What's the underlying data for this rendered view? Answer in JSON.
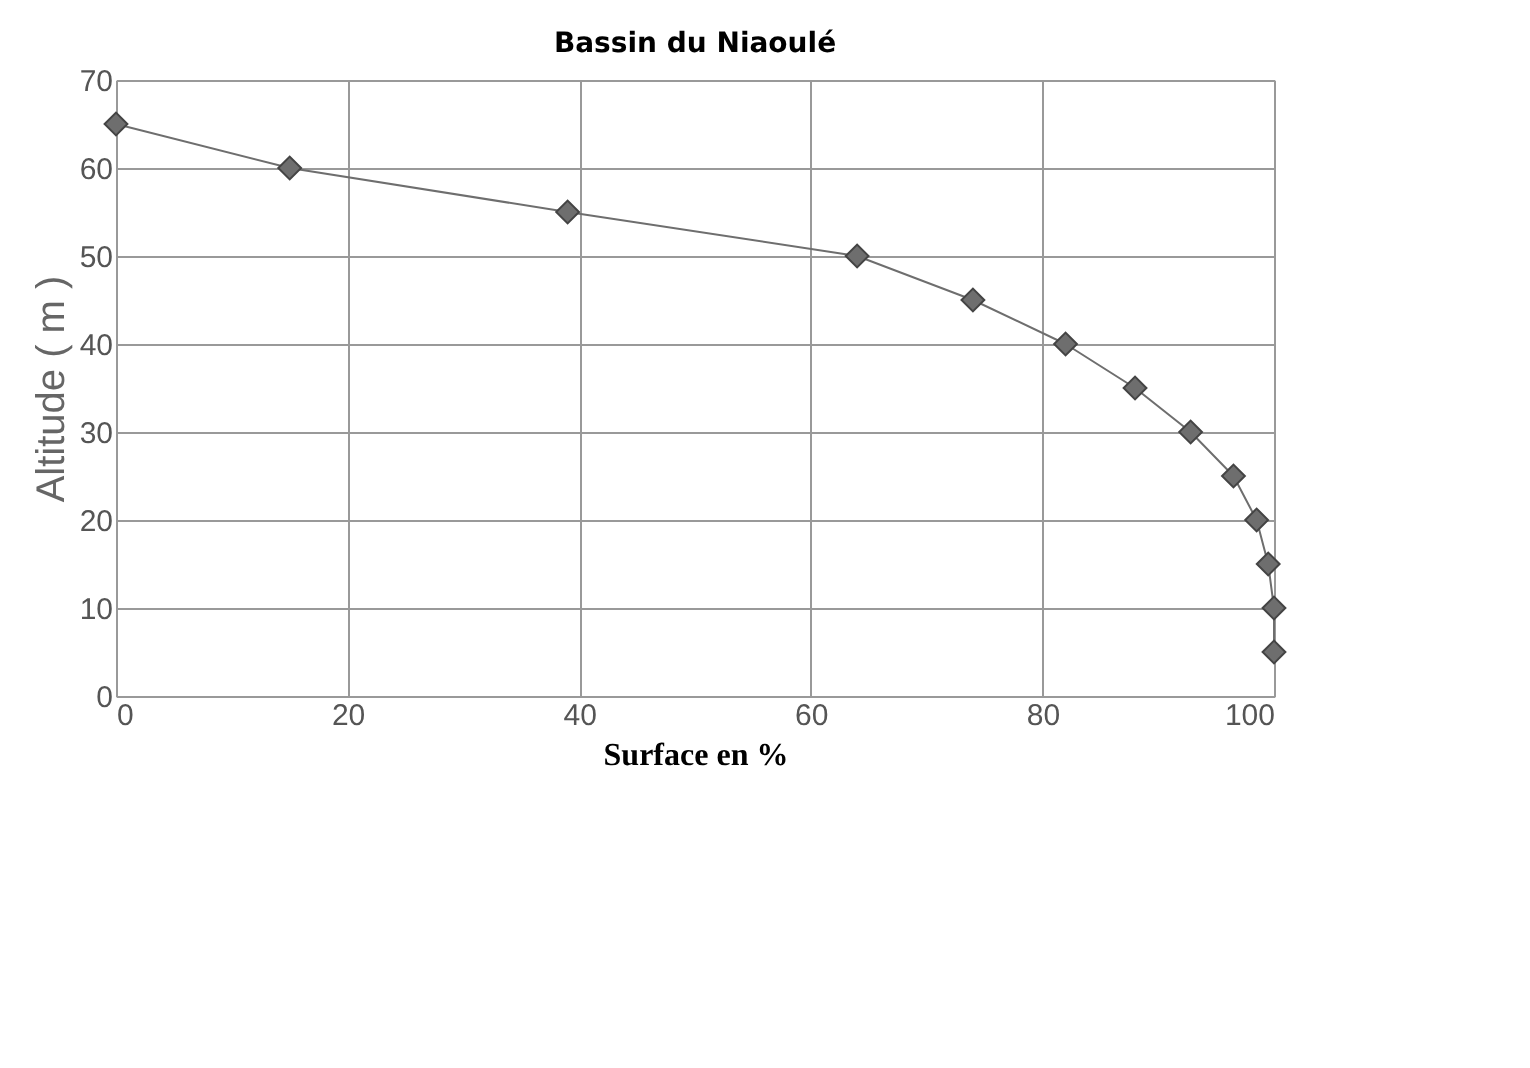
{
  "chart_data": {
    "type": "line",
    "title": "Bassin du Niaoulé",
    "xlabel": "Surface en %",
    "ylabel": "Altitude ( m )",
    "series": [
      {
        "color": "#6e6e6e",
        "x": [
          0,
          15,
          39,
          64,
          74,
          82,
          88,
          92.8,
          96.5,
          98.5,
          99.5,
          100,
          100
        ],
        "values": [
          65,
          60,
          55,
          50,
          45,
          40,
          35,
          30,
          25,
          20,
          15,
          10,
          5
        ]
      }
    ],
    "xlim": [
      0,
      100
    ],
    "ylim": [
      0,
      70
    ],
    "xticks": [
      0,
      20,
      40,
      60,
      80,
      100
    ],
    "yticks": [
      0,
      10,
      20,
      30,
      40,
      50,
      60,
      70
    ],
    "grid": true,
    "marker": "diamond",
    "line_style": "solid"
  }
}
